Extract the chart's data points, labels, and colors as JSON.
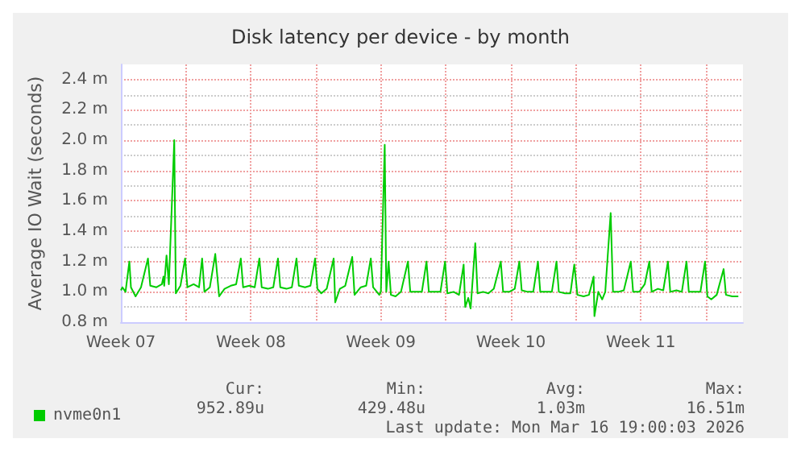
{
  "chart_data": {
    "type": "line",
    "title": "Disk latency per device - by month",
    "ylabel": "Average IO Wait (seconds)",
    "x": [
      "2026-02-11T12:00",
      "2026-02-11T14:00",
      "2026-02-11T18:00",
      "2026-02-11T23:00",
      "2026-02-12T01:00",
      "2026-02-12T07:00",
      "2026-02-12T14:00",
      "2026-02-12T23:00",
      "2026-02-13T02:00",
      "2026-02-13T10:00",
      "2026-02-13T17:00",
      "2026-02-13T19:00",
      "2026-02-13T20:00",
      "2026-02-13T23:00",
      "2026-02-14T02:00",
      "2026-02-14T09:00",
      "2026-02-14T11:00",
      "2026-02-14T17:00",
      "2026-02-14T23:00",
      "2026-02-15T02:00",
      "2026-02-15T10:00",
      "2026-02-15T17:00",
      "2026-02-15T21:00",
      "2026-02-16T00:00",
      "2026-02-16T07:00",
      "2026-02-16T14:00",
      "2026-02-16T19:00",
      "2026-02-17T02:00",
      "2026-02-17T10:00",
      "2026-02-17T17:00",
      "2026-02-17T23:00",
      "2026-02-18T02:00",
      "2026-02-18T10:00",
      "2026-02-18T17:00",
      "2026-02-18T23:00",
      "2026-02-19T02:00",
      "2026-02-19T10:00",
      "2026-02-19T17:00",
      "2026-02-19T23:00",
      "2026-02-20T02:00",
      "2026-02-20T10:00",
      "2026-02-20T17:00",
      "2026-02-20T23:00",
      "2026-02-21T02:00",
      "2026-02-21T10:00",
      "2026-02-21T17:00",
      "2026-02-21T23:00",
      "2026-02-22T02:00",
      "2026-02-22T07:00",
      "2026-02-22T14:00",
      "2026-02-22T23:00",
      "2026-02-23T01:00",
      "2026-02-23T07:00",
      "2026-02-23T14:00",
      "2026-02-23T23:00",
      "2026-02-24T02:00",
      "2026-02-24T10:00",
      "2026-02-24T17:00",
      "2026-02-24T23:00",
      "2026-02-25T02:00",
      "2026-02-25T10:00",
      "2026-02-25T12:00",
      "2026-02-25T17:00",
      "2026-02-25T19:00",
      "2026-02-25T22:00",
      "2026-02-26T01:00",
      "2026-02-26T07:00",
      "2026-02-26T14:00",
      "2026-02-26T23:00",
      "2026-02-27T02:00",
      "2026-02-27T10:00",
      "2026-02-27T17:00",
      "2026-02-27T23:00",
      "2026-02-28T02:00",
      "2026-02-28T10:00",
      "2026-02-28T17:00",
      "2026-02-28T23:00",
      "2026-03-01T02:00",
      "2026-03-01T10:00",
      "2026-03-01T17:00",
      "2026-03-01T23:00",
      "2026-03-02T01:00",
      "2026-03-02T05:00",
      "2026-03-02T08:00",
      "2026-03-02T14:00",
      "2026-03-02T17:00",
      "2026-03-03T00:00",
      "2026-03-03T07:00",
      "2026-03-03T14:00",
      "2026-03-03T23:00",
      "2026-03-04T02:00",
      "2026-03-04T10:00",
      "2026-03-04T17:00",
      "2026-03-04T23:00",
      "2026-03-05T02:00",
      "2026-03-05T10:00",
      "2026-03-05T17:00",
      "2026-03-05T23:00",
      "2026-03-06T02:00",
      "2026-03-06T10:00",
      "2026-03-06T17:00",
      "2026-03-06T23:00",
      "2026-03-07T02:00",
      "2026-03-07T10:00",
      "2026-03-07T17:00",
      "2026-03-07T22:00",
      "2026-03-08T02:00",
      "2026-03-08T10:00",
      "2026-03-08T17:00",
      "2026-03-08T23:00",
      "2026-03-09T00:00",
      "2026-03-09T05:00",
      "2026-03-09T10:00",
      "2026-03-09T14:00",
      "2026-03-09T21:00",
      "2026-03-10T00:00",
      "2026-03-10T07:00",
      "2026-03-10T14:00",
      "2026-03-10T23:00",
      "2026-03-11T02:00",
      "2026-03-11T10:00",
      "2026-03-11T17:00",
      "2026-03-11T23:00",
      "2026-03-12T02:00",
      "2026-03-12T10:00",
      "2026-03-12T17:00",
      "2026-03-12T23:00",
      "2026-03-13T02:00",
      "2026-03-13T10:00",
      "2026-03-13T17:00",
      "2026-03-13T23:00",
      "2026-03-14T02:00",
      "2026-03-14T10:00",
      "2026-03-14T17:00",
      "2026-03-14T23:00",
      "2026-03-15T02:00",
      "2026-03-15T07:00",
      "2026-03-15T14:00",
      "2026-03-15T23:00",
      "2026-03-16T02:00",
      "2026-03-16T10:00",
      "2026-03-16T18:00"
    ],
    "series": [
      {
        "name": "nvme0n1",
        "color": "#00cc00",
        "values": [
          1.01,
          1.03,
          1.0,
          1.2,
          1.03,
          0.97,
          1.03,
          1.22,
          1.04,
          1.03,
          1.05,
          1.1,
          1.04,
          1.24,
          1.05,
          2.0,
          0.99,
          1.04,
          1.22,
          1.03,
          1.05,
          1.03,
          1.22,
          1.0,
          1.03,
          1.25,
          0.97,
          1.02,
          1.04,
          1.05,
          1.22,
          1.03,
          1.04,
          1.03,
          1.22,
          1.03,
          1.02,
          1.03,
          1.22,
          1.03,
          1.02,
          1.03,
          1.22,
          1.04,
          1.03,
          1.04,
          1.22,
          1.02,
          0.99,
          1.02,
          1.22,
          0.93,
          1.02,
          1.04,
          1.23,
          0.98,
          1.03,
          1.04,
          1.22,
          1.03,
          0.98,
          1.0,
          1.97,
          1.0,
          1.2,
          0.98,
          0.97,
          1.0,
          1.2,
          1.0,
          1.0,
          1.0,
          1.2,
          1.0,
          1.0,
          1.0,
          1.2,
          0.99,
          1.0,
          0.98,
          1.18,
          0.9,
          0.96,
          0.89,
          1.32,
          0.99,
          1.0,
          0.99,
          1.02,
          1.2,
          1.0,
          1.0,
          1.02,
          1.2,
          1.01,
          1.0,
          1.0,
          1.2,
          1.0,
          1.0,
          1.0,
          1.2,
          1.0,
          0.99,
          0.99,
          1.18,
          0.98,
          0.97,
          0.98,
          1.1,
          0.84,
          1.0,
          0.95,
          1.0,
          1.52,
          1.0,
          1.0,
          1.01,
          1.2,
          1.0,
          1.0,
          1.05,
          1.2,
          1.0,
          1.02,
          1.01,
          1.2,
          1.0,
          1.01,
          1.0,
          1.2,
          1.0,
          1.0,
          1.0,
          1.2,
          0.97,
          0.95,
          0.98,
          1.15,
          0.98,
          0.97,
          0.97
        ]
      }
    ],
    "xlim": [
      "2026-02-11T12:00",
      "2026-03-17T00:00"
    ],
    "xticks": [
      {
        "value": "2026-02-11T12:00",
        "label": "Week 07"
      },
      {
        "value": "2026-02-15",
        "label": null
      },
      {
        "value": "2026-02-18T12:00",
        "label": "Week 08"
      },
      {
        "value": "2026-02-22",
        "label": null
      },
      {
        "value": "2026-02-25T12:00",
        "label": "Week 09"
      },
      {
        "value": "2026-03-01",
        "label": null
      },
      {
        "value": "2026-03-04T12:00",
        "label": "Week 10"
      },
      {
        "value": "2026-03-08",
        "label": null
      },
      {
        "value": "2026-03-11T12:00",
        "label": "Week 11"
      },
      {
        "value": "2026-03-15",
        "label": null
      }
    ],
    "ylim": [
      0.8,
      2.5
    ],
    "yticks": [
      {
        "value": 0.8,
        "label": "0.8 m"
      },
      {
        "value": 1.0,
        "label": "1.0 m"
      },
      {
        "value": 1.2,
        "label": "1.2 m"
      },
      {
        "value": 1.4,
        "label": "1.4 m"
      },
      {
        "value": 1.6,
        "label": "1.6 m"
      },
      {
        "value": 1.8,
        "label": "1.8 m"
      },
      {
        "value": 2.0,
        "label": "2.0 m"
      },
      {
        "value": 2.2,
        "label": "2.2 m"
      },
      {
        "value": 2.4,
        "label": "2.4 m"
      }
    ],
    "grid": true,
    "legend": "bottom",
    "marker": "none",
    "line_style": "solid",
    "annotations": [
      "Cur:",
      "952.89u",
      "Min:",
      "429.48u",
      "Avg:",
      "1.03m",
      "Max:",
      "16.51m",
      "Last update: Mon Mar 16 19:00:03 2026"
    ]
  }
}
